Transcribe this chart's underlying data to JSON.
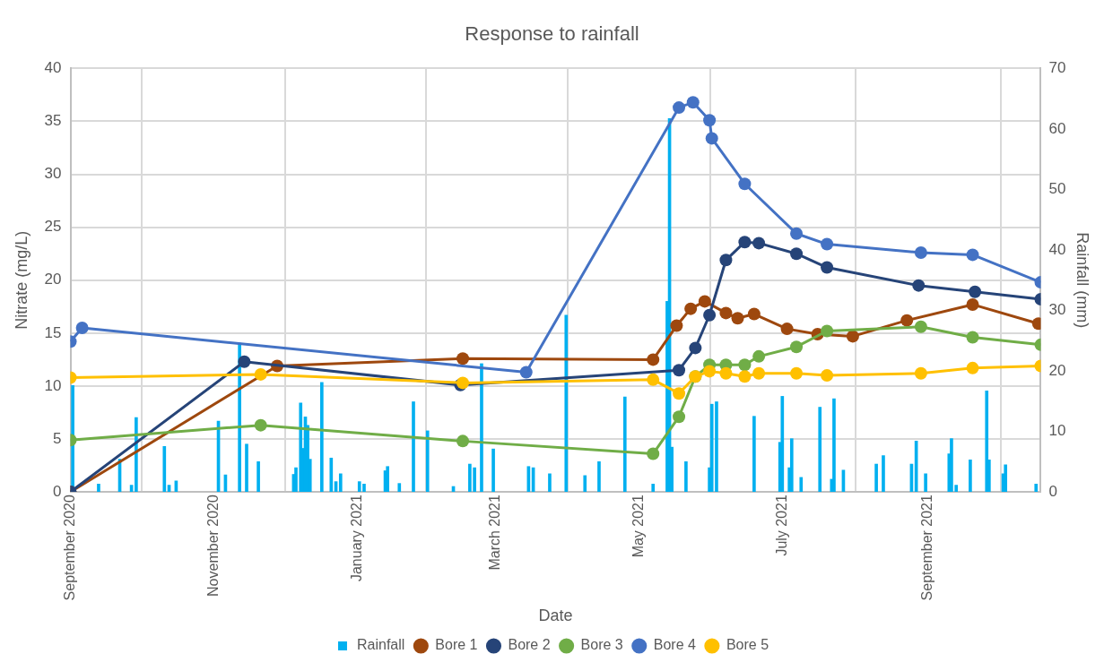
{
  "chart_data": {
    "type": "line",
    "title": "Response to rainfall",
    "xlabel": "Date",
    "ylabel": "Nitrate (mg/L)",
    "y2label": "Rainfall (mm)",
    "xlim": [
      "2020-09-01",
      "2021-10-19"
    ],
    "xticks": [
      {
        "value": "2020-09-01",
        "label": "September 2020"
      },
      {
        "value": "2020-11-01",
        "label": "November 2020"
      },
      {
        "value": "2021-01-01",
        "label": "January 2021"
      },
      {
        "value": "2021-03-01",
        "label": "March 2021"
      },
      {
        "value": "2021-05-01",
        "label": "May 2021"
      },
      {
        "value": "2021-07-01",
        "label": "July 2021"
      },
      {
        "value": "2021-09-01",
        "label": "September 2021"
      }
    ],
    "ylim": [
      0,
      40
    ],
    "yticks": [
      0,
      5,
      10,
      15,
      20,
      25,
      30,
      35,
      40
    ],
    "y2lim": [
      0,
      70
    ],
    "y2ticks": [
      0,
      10,
      20,
      30,
      40,
      50,
      60,
      70
    ],
    "grid": true,
    "legend": "bottom",
    "marker": "circle",
    "line_style": "solid",
    "series": [
      {
        "name": "Rainfall",
        "type": "bar",
        "axis": "y2",
        "color": "#00b0f0",
        "x": [
          "2020-09-02",
          "2020-09-13",
          "2020-09-22",
          "2020-09-27",
          "2020-09-29",
          "2020-10-11",
          "2020-10-13",
          "2020-10-16",
          "2020-11-03",
          "2020-11-06",
          "2020-11-12",
          "2020-11-15",
          "2020-11-20",
          "2020-12-05",
          "2020-12-06",
          "2020-12-08",
          "2020-12-09",
          "2020-12-10",
          "2020-12-11",
          "2020-12-12",
          "2020-12-17",
          "2020-12-21",
          "2020-12-23",
          "2020-12-25",
          "2021-01-02",
          "2021-01-04",
          "2021-01-13",
          "2021-01-14",
          "2021-01-19",
          "2021-01-25",
          "2021-01-31",
          "2021-02-11",
          "2021-02-18",
          "2021-02-20",
          "2021-02-23",
          "2021-02-28",
          "2021-03-15",
          "2021-03-17",
          "2021-03-24",
          "2021-03-31",
          "2021-04-08",
          "2021-04-14",
          "2021-04-25",
          "2021-05-07",
          "2021-05-13",
          "2021-05-14",
          "2021-05-15",
          "2021-05-21",
          "2021-05-31",
          "2021-06-01",
          "2021-06-03",
          "2021-06-19",
          "2021-06-30",
          "2021-07-01",
          "2021-07-04",
          "2021-07-05",
          "2021-07-09",
          "2021-07-17",
          "2021-07-22",
          "2021-07-23",
          "2021-07-27",
          "2021-08-10",
          "2021-08-13",
          "2021-08-25",
          "2021-08-27",
          "2021-08-31",
          "2021-09-10",
          "2021-09-11",
          "2021-09-13",
          "2021-09-19",
          "2021-09-26",
          "2021-09-27",
          "2021-10-03",
          "2021-10-04",
          "2021-10-17"
        ],
        "values": [
          17.6,
          1.3,
          5.4,
          1.1,
          12.3,
          7.5,
          1.1,
          1.8,
          11.7,
          2.8,
          24.6,
          7.9,
          5.0,
          2.9,
          4.0,
          14.7,
          7.2,
          12.4,
          11.0,
          5.4,
          18.1,
          5.6,
          1.7,
          3.0,
          1.7,
          1.3,
          3.5,
          4.2,
          1.4,
          14.9,
          10.1,
          0.9,
          4.6,
          4.0,
          21.2,
          7.1,
          4.2,
          4.0,
          3.0,
          29.2,
          2.7,
          5.0,
          15.7,
          1.3,
          31.5,
          61.7,
          7.4,
          5.0,
          4.0,
          14.5,
          14.9,
          12.5,
          8.2,
          15.8,
          4.0,
          8.8,
          2.4,
          14.0,
          2.1,
          15.4,
          3.6,
          4.6,
          6.0,
          4.6,
          8.4,
          3.0,
          6.3,
          8.8,
          1.1,
          5.3,
          16.7,
          5.3,
          3.0,
          4.5,
          1.3
        ]
      },
      {
        "name": "Bore 1",
        "color": "#9e480e",
        "x": [
          "2020-09-01",
          "2020-11-28",
          "2021-02-15",
          "2021-05-07",
          "2021-05-17",
          "2021-05-23",
          "2021-05-29",
          "2021-06-07",
          "2021-06-12",
          "2021-06-19",
          "2021-07-03",
          "2021-07-16",
          "2021-07-31",
          "2021-08-23",
          "2021-09-20",
          "2021-10-18"
        ],
        "values": [
          0,
          11.9,
          12.6,
          12.5,
          15.7,
          17.3,
          18.0,
          16.9,
          16.4,
          16.8,
          15.4,
          14.9,
          14.7,
          16.2,
          17.7,
          15.9
        ]
      },
      {
        "name": "Bore 2",
        "color": "#264478",
        "x": [
          "2020-09-01",
          "2020-11-14",
          "2021-02-14",
          "2021-05-18",
          "2021-05-25",
          "2021-05-31",
          "2021-06-07",
          "2021-06-15",
          "2021-06-21",
          "2021-07-07",
          "2021-07-20",
          "2021-08-28",
          "2021-09-21",
          "2021-10-19"
        ],
        "values": [
          0,
          12.3,
          10.1,
          11.5,
          13.6,
          16.7,
          21.9,
          23.6,
          23.5,
          22.5,
          21.2,
          19.5,
          18.9,
          18.2
        ]
      },
      {
        "name": "Bore 3",
        "color": "#70ad47",
        "x": [
          "2020-09-01",
          "2020-11-21",
          "2021-02-15",
          "2021-05-07",
          "2021-05-18",
          "2021-05-25",
          "2021-05-31",
          "2021-06-07",
          "2021-06-15",
          "2021-06-21",
          "2021-07-07",
          "2021-07-20",
          "2021-08-29",
          "2021-09-20",
          "2021-10-19"
        ],
        "values": [
          4.9,
          6.3,
          4.8,
          3.6,
          7.1,
          10.9,
          12.0,
          12.0,
          12.0,
          12.8,
          13.7,
          15.2,
          15.6,
          14.6,
          13.9
        ]
      },
      {
        "name": "Bore 4",
        "color": "#4472c4",
        "x": [
          "2020-09-01",
          "2020-09-06",
          "2021-03-14",
          "2021-05-18",
          "2021-05-24",
          "2021-05-31",
          "2021-06-01",
          "2021-06-15",
          "2021-07-07",
          "2021-07-20",
          "2021-08-29",
          "2021-09-20",
          "2021-10-19"
        ],
        "values": [
          14.2,
          15.5,
          11.3,
          36.3,
          36.8,
          35.1,
          33.4,
          29.1,
          24.4,
          23.4,
          22.6,
          22.4,
          19.8
        ]
      },
      {
        "name": "Bore 5",
        "color": "#ffc000",
        "x": [
          "2020-09-01",
          "2020-11-21",
          "2021-02-15",
          "2021-05-07",
          "2021-05-18",
          "2021-05-25",
          "2021-05-31",
          "2021-06-07",
          "2021-06-15",
          "2021-06-21",
          "2021-07-07",
          "2021-07-20",
          "2021-08-29",
          "2021-09-20",
          "2021-10-19"
        ],
        "values": [
          10.8,
          11.1,
          10.3,
          10.6,
          9.3,
          10.9,
          11.4,
          11.2,
          10.9,
          11.2,
          11.2,
          11.0,
          11.2,
          11.7,
          11.9
        ]
      }
    ]
  }
}
